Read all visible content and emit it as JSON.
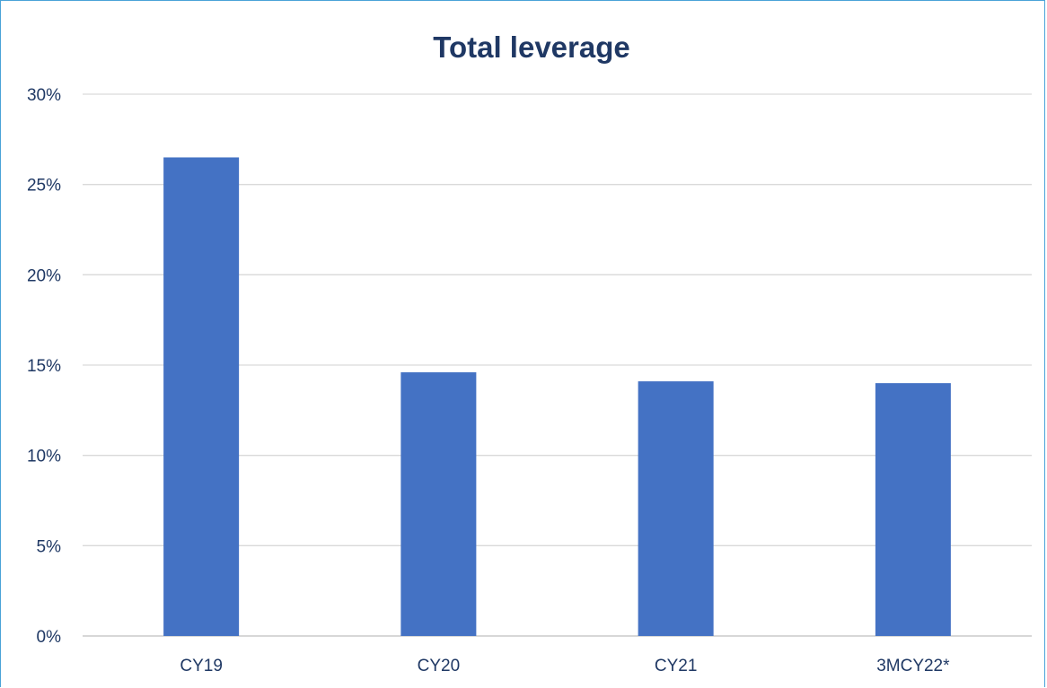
{
  "chart_data": {
    "type": "bar",
    "title": "Total leverage",
    "xlabel": "",
    "ylabel": "",
    "categories": [
      "CY19",
      "CY20",
      "CY21",
      "3MCY22*"
    ],
    "series": [
      {
        "values": [
          26.5,
          14.6,
          14.1,
          14.0
        ]
      }
    ],
    "ylim": [
      0,
      30
    ],
    "yticks": [
      0,
      5,
      10,
      15,
      20,
      25,
      30
    ],
    "ytick_labels": [
      "0%",
      "5%",
      "10%",
      "15%",
      "20%",
      "25%",
      "30%"
    ],
    "grid": true,
    "legend": "none",
    "colors": {
      "bar": "#4472c4",
      "title": "#1f3864",
      "text": "#1f3864",
      "grid": "#d9d9d9",
      "border": "#4aa3d8"
    }
  }
}
